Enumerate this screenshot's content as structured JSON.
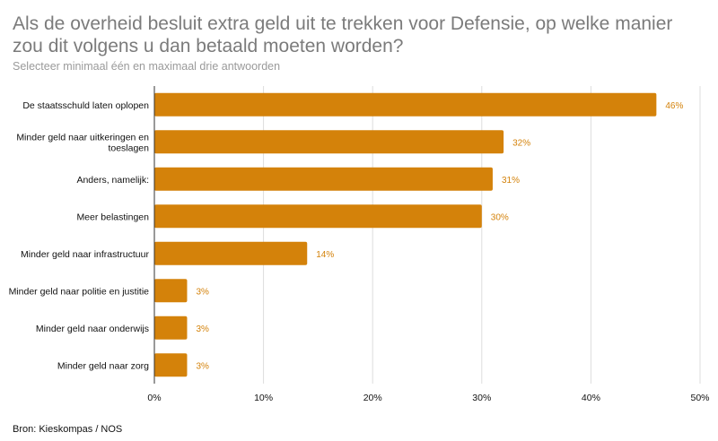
{
  "chart_data": {
    "type": "bar",
    "orientation": "horizontal",
    "title": "Als de overheid besluit extra geld uit te trekken voor Defensie, op welke manier zou dit volgens u dan betaald moeten worden?",
    "subtitle": "Selecteer minimaal één en maximaal drie antwoorden",
    "source": "Bron: Kieskompas / NOS",
    "categories": [
      "De staatsschuld laten oplopen",
      "Minder geld naar uitkeringen en toeslagen",
      "Anders, namelijk:",
      "Meer belastingen",
      "Minder geld naar infrastructuur",
      "Minder geld naar politie en justitie",
      "Minder geld naar onderwijs",
      "Minder geld naar zorg"
    ],
    "category_lines": [
      [
        "De staatsschuld laten oplopen"
      ],
      [
        "Minder geld naar uitkeringen en",
        "toeslagen"
      ],
      [
        "Anders, namelijk:"
      ],
      [
        "Meer belastingen"
      ],
      [
        "Minder geld naar infrastructuur"
      ],
      [
        "Minder geld naar politie en justitie"
      ],
      [
        "Minder geld naar onderwijs"
      ],
      [
        "Minder geld naar zorg"
      ]
    ],
    "values": [
      46,
      32,
      31,
      30,
      14,
      3,
      3,
      3
    ],
    "value_labels": [
      "46%",
      "32%",
      "31%",
      "30%",
      "14%",
      "3%",
      "3%",
      "3%"
    ],
    "xlim": [
      0,
      50
    ],
    "xticks": [
      0,
      10,
      20,
      30,
      40,
      50
    ],
    "xtick_labels": [
      "0%",
      "10%",
      "20%",
      "30%",
      "40%",
      "50%"
    ],
    "grid": true,
    "bar_color": "#d4820a",
    "label_color": "#d4820a",
    "grid_color": "#dddddd"
  }
}
